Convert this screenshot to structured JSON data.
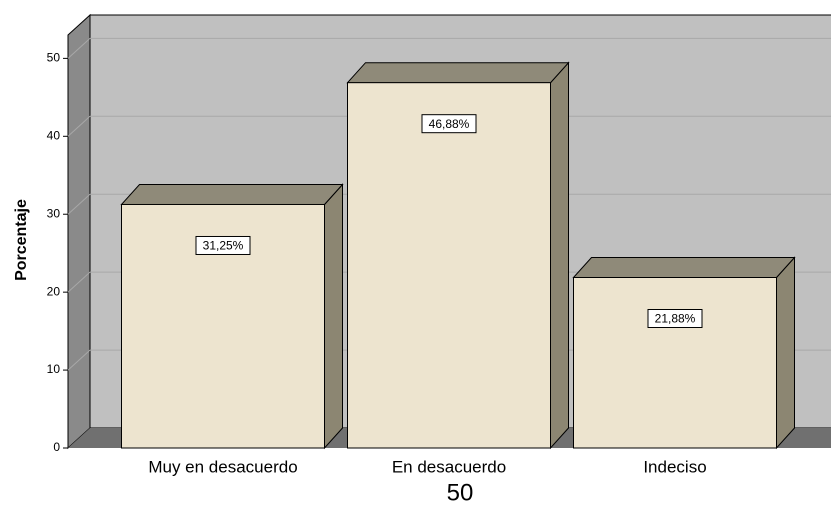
{
  "chart_data": {
    "type": "bar3d",
    "ylabel": "Porcentaje",
    "categories": [
      "Muy en desacuerdo",
      "En desacuerdo",
      "Indeciso"
    ],
    "values": [
      31.25,
      46.88,
      21.88
    ],
    "value_labels": [
      "31,25%",
      "46,88%",
      "21,88%"
    ],
    "color": "#ede4cf",
    "ylim": [
      0,
      53
    ],
    "yticks": [
      0,
      10,
      20,
      30,
      40,
      50
    ],
    "grid": true
  },
  "page_number": "50"
}
